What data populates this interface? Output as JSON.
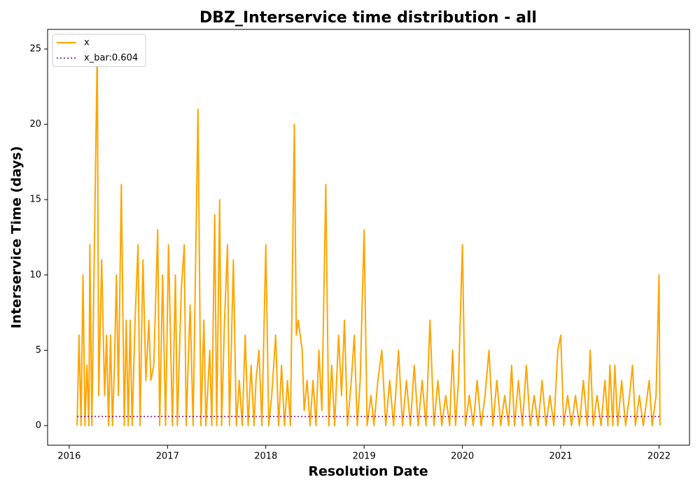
{
  "chart_data": {
    "type": "line",
    "title": "DBZ_Interservice time distribution - all",
    "x_label": "Resolution Date",
    "y_label": "Interservice Time (days)",
    "xlim": [
      2015.78,
      2022.31
    ],
    "xticks": [
      2016,
      2017,
      2018,
      2019,
      2020,
      2021,
      2022
    ],
    "ylim": [
      -1.3,
      26.3
    ],
    "yticks": [
      0,
      5,
      10,
      15,
      20,
      25
    ],
    "grid": false,
    "legend": "upper left",
    "series": [
      {
        "name": "x",
        "color": "#ffa500",
        "dash": "solid",
        "x": [
          2016.08,
          2016.1,
          2016.12,
          2016.14,
          2016.16,
          2016.18,
          2016.2,
          2016.21,
          2016.23,
          2016.285,
          2016.3,
          2016.33,
          2016.36,
          2016.38,
          2016.4,
          2016.42,
          2016.44,
          2016.46,
          2016.48,
          2016.5,
          2016.53,
          2016.56,
          2016.58,
          2016.6,
          2016.62,
          2016.64,
          2016.67,
          2016.7,
          2016.72,
          2016.75,
          2016.78,
          2016.81,
          2016.83,
          2016.86,
          2016.9,
          2016.92,
          2016.95,
          2016.98,
          2017.01,
          2017.05,
          2017.08,
          2017.1,
          2017.14,
          2017.17,
          2017.19,
          2017.23,
          2017.26,
          2017.31,
          2017.34,
          2017.37,
          2017.39,
          2017.43,
          2017.45,
          2017.48,
          2017.5,
          2017.53,
          2017.55,
          2017.58,
          2017.61,
          2017.63,
          2017.67,
          2017.7,
          2017.73,
          2017.76,
          2017.79,
          2017.82,
          2017.85,
          2017.88,
          2017.9,
          2017.93,
          2017.96,
          2018.0,
          2018.03,
          2018.06,
          2018.1,
          2018.13,
          2018.16,
          2018.19,
          2018.22,
          2018.25,
          2018.29,
          2018.31,
          2018.33,
          2018.37,
          2018.39,
          2018.42,
          2018.45,
          2018.48,
          2018.51,
          2018.54,
          2018.57,
          2018.61,
          2018.64,
          2018.67,
          2018.7,
          2018.74,
          2018.77,
          2018.8,
          2018.83,
          2018.87,
          2018.9,
          2018.93,
          2018.96,
          2019.0,
          2019.03,
          2019.07,
          2019.1,
          2019.14,
          2019.18,
          2019.22,
          2019.26,
          2019.3,
          2019.35,
          2019.39,
          2019.43,
          2019.47,
          2019.51,
          2019.55,
          2019.59,
          2019.63,
          2019.67,
          2019.71,
          2019.75,
          2019.79,
          2019.83,
          2019.87,
          2019.9,
          2019.93,
          2019.96,
          2020.0,
          2020.03,
          2020.07,
          2020.11,
          2020.15,
          2020.19,
          2020.23,
          2020.27,
          2020.31,
          2020.35,
          2020.39,
          2020.43,
          2020.47,
          2020.5,
          2020.53,
          2020.57,
          2020.61,
          2020.65,
          2020.69,
          2020.73,
          2020.77,
          2020.81,
          2020.85,
          2020.89,
          2020.93,
          2020.97,
          2021.0,
          2021.03,
          2021.07,
          2021.11,
          2021.15,
          2021.19,
          2021.23,
          2021.27,
          2021.3,
          2021.33,
          2021.37,
          2021.41,
          2021.45,
          2021.48,
          2021.5,
          2021.53,
          2021.55,
          2021.58,
          2021.62,
          2021.66,
          2021.7,
          2021.73,
          2021.76,
          2021.8,
          2021.84,
          2021.88,
          2021.9,
          2021.93,
          2021.97,
          2022.0,
          2022.01
        ],
        "values": [
          0,
          6,
          0,
          10,
          0,
          4,
          0,
          12,
          0,
          25,
          2,
          11,
          2,
          6,
          0,
          6,
          0,
          4,
          10,
          2,
          16,
          0,
          7,
          0,
          7,
          0,
          7,
          12,
          0,
          11,
          3,
          7,
          3,
          4,
          13,
          0,
          10,
          0,
          12,
          0,
          10,
          0,
          9,
          12,
          0,
          8,
          0,
          21,
          0,
          7,
          0,
          5,
          0,
          14,
          0,
          15,
          0,
          7,
          12,
          0,
          11,
          0,
          3,
          0,
          6,
          0,
          4,
          0,
          3,
          5,
          0,
          12,
          0,
          2,
          6,
          0,
          4,
          0,
          3,
          0,
          20,
          6,
          7,
          5,
          1,
          3,
          0,
          3,
          0,
          5,
          1,
          16,
          0,
          4,
          0,
          6,
          2,
          7,
          0,
          3,
          6,
          0,
          3,
          13,
          0,
          2,
          0,
          3,
          5,
          0,
          3,
          0,
          5,
          0,
          3,
          0,
          4,
          0,
          3,
          0,
          7,
          0,
          3,
          0,
          2,
          0,
          5,
          0,
          3,
          12,
          0,
          2,
          0,
          3,
          0,
          2,
          5,
          0,
          3,
          0,
          2,
          0,
          4,
          0,
          3,
          0,
          4,
          0,
          2,
          0,
          3,
          0,
          2,
          0,
          5,
          6,
          0,
          2,
          0,
          2,
          0,
          3,
          0,
          5,
          0,
          2,
          0,
          3,
          0,
          4,
          0,
          4,
          0,
          3,
          0,
          2,
          4,
          0,
          2,
          0,
          2,
          3,
          0,
          2,
          10,
          0
        ]
      },
      {
        "name": "x_bar:0.604",
        "color": "#800080",
        "dash": "dotted",
        "x": [
          2016.08,
          2022.01
        ],
        "values": [
          0.604,
          0.604
        ]
      }
    ]
  }
}
